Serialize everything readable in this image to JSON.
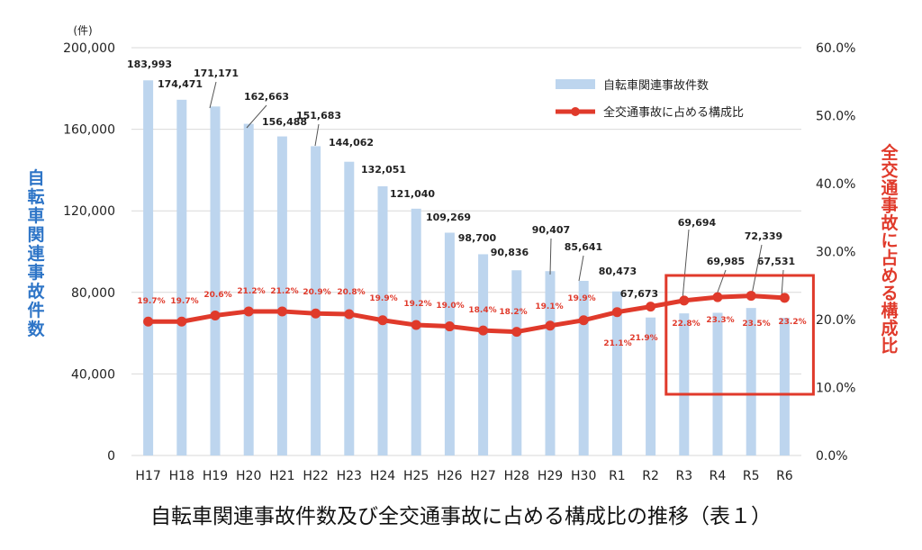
{
  "chart_data": {
    "type": "bar",
    "title": "自転車関連事故件数及び全交通事故に占める構成比の推移（表１）",
    "unit_label": "(件)",
    "categories": [
      "H17",
      "H18",
      "H19",
      "H20",
      "H21",
      "H22",
      "H23",
      "H24",
      "H25",
      "H26",
      "H27",
      "H28",
      "H29",
      "H30",
      "R1",
      "R2",
      "R3",
      "R4",
      "R5",
      "R6"
    ],
    "series": [
      {
        "name": "自転車関連事故件数",
        "type": "bar",
        "axis": "left",
        "color": "#bdd5ee",
        "values": [
          183993,
          174471,
          171171,
          162663,
          156488,
          151683,
          144062,
          132051,
          121040,
          109269,
          98700,
          90836,
          90407,
          85641,
          80473,
          67673,
          69694,
          69985,
          72339,
          67531
        ],
        "labels": [
          "183,993",
          "174,471",
          "171,171",
          "162,663",
          "156,488",
          "151,683",
          "144,062",
          "132,051",
          "121,040",
          "109,269",
          "98,700",
          "90,836",
          "90,407",
          "85,641",
          "80,473",
          "67,673",
          "69,694",
          "69,985",
          "72,339",
          "67,531"
        ]
      },
      {
        "name": "全交通事故に占める構成比",
        "type": "line",
        "axis": "right",
        "color": "#e03a2b",
        "values": [
          19.7,
          19.7,
          20.6,
          21.2,
          21.2,
          20.9,
          20.8,
          19.9,
          19.2,
          19.0,
          18.4,
          18.2,
          19.1,
          19.9,
          21.1,
          21.9,
          22.8,
          23.3,
          23.5,
          23.2
        ],
        "labels": [
          "19.7%",
          "19.7%",
          "20.6%",
          "21.2%",
          "21.2%",
          "20.9%",
          "20.8%",
          "19.9%",
          "19.2%",
          "19.0%",
          "18.4%",
          "18.2%",
          "19.1%",
          "19.9%",
          "21.1%",
          "21.9%",
          "22.8%",
          "23.3%",
          "23.5%",
          "23.2%"
        ]
      }
    ],
    "left_axis": {
      "label": "自転車関連事故件数",
      "ylim": [
        0,
        200000
      ],
      "ticks": [
        0,
        40000,
        80000,
        120000,
        160000,
        200000
      ],
      "tick_labels": [
        "0",
        "40,000",
        "80,000",
        "120,000",
        "160,000",
        "200,000"
      ]
    },
    "right_axis": {
      "label": "全交通事故に占める構成比",
      "ylim": [
        0,
        60
      ],
      "ticks": [
        0,
        10,
        20,
        30,
        40,
        50,
        60
      ],
      "tick_labels": [
        "0.0%",
        "10.0%",
        "20.0%",
        "30.0%",
        "40.0%",
        "50.0%",
        "60.0%"
      ]
    },
    "grid": true,
    "legend_position": "top-right",
    "highlight": {
      "categories": [
        "R3",
        "R4",
        "R5",
        "R6"
      ],
      "color": "#e03a2b"
    }
  }
}
